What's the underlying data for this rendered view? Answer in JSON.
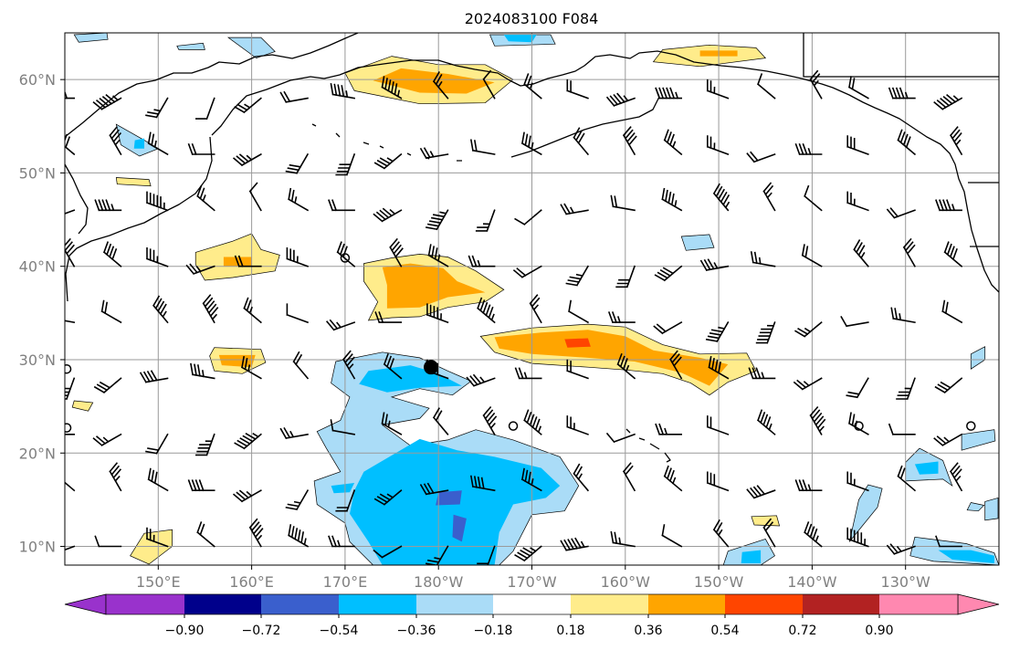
{
  "title": "2024083100 F084",
  "map": {
    "lon_range": [
      140,
      240
    ],
    "lat_range": [
      8,
      65
    ],
    "lon_ticks": [
      {
        "lon": 150,
        "label": "150°E"
      },
      {
        "lon": 160,
        "label": "160°E"
      },
      {
        "lon": 170,
        "label": "170°E"
      },
      {
        "lon": 180,
        "label": "180°W"
      },
      {
        "lon": 190,
        "label": "170°W"
      },
      {
        "lon": 200,
        "label": "160°W"
      },
      {
        "lon": 210,
        "label": "150°W"
      },
      {
        "lon": 220,
        "label": "140°W"
      },
      {
        "lon": 230,
        "label": "130°W"
      }
    ],
    "lat_ticks": [
      {
        "lat": 10,
        "label": "10°N"
      },
      {
        "lat": 20,
        "label": "20°N"
      },
      {
        "lat": 30,
        "label": "30°N"
      },
      {
        "lat": 40,
        "label": "40°N"
      },
      {
        "lat": 50,
        "label": "50°N"
      },
      {
        "lat": 60,
        "label": "60°N"
      }
    ],
    "gridlines": true,
    "marker": {
      "lon": 179.2,
      "lat": 29.2,
      "symbol": "filled-circle"
    }
  },
  "colorbar": {
    "levels": [
      "−0.90",
      "−0.72",
      "−0.54",
      "−0.36",
      "−0.18",
      "0.18",
      "0.36",
      "0.54",
      "0.72",
      "0.90"
    ],
    "colors": [
      "#9932cc",
      "#00008b",
      "#3a5fcd",
      "#00bfff",
      "#aadcf7",
      "#ffffff",
      "#ffec8b",
      "#ffa500",
      "#ff4500",
      "#b22222",
      "#ff88b0"
    ],
    "extend": "both"
  },
  "anomaly_regions": [
    {
      "sign": "pos",
      "level": 1,
      "points": [
        [
          175,
          62.5
        ],
        [
          180,
          61.6
        ],
        [
          185,
          61.6
        ],
        [
          188,
          60
        ],
        [
          185,
          57.5
        ],
        [
          178,
          57.4
        ],
        [
          171,
          58.8
        ],
        [
          170,
          60.7
        ]
      ]
    },
    {
      "sign": "pos",
      "level": 2,
      "points": [
        [
          176,
          61.2
        ],
        [
          181,
          60.6
        ],
        [
          186,
          59.7
        ],
        [
          183,
          58.5
        ],
        [
          178,
          58.6
        ],
        [
          173,
          59.9
        ]
      ]
    },
    {
      "sign": "pos",
      "level": 1,
      "points": [
        [
          204,
          63.2
        ],
        [
          209,
          63.7
        ],
        [
          214,
          63.4
        ],
        [
          215,
          62.3
        ],
        [
          208,
          61.4
        ],
        [
          203,
          61.9
        ]
      ]
    },
    {
      "sign": "pos",
      "level": 2,
      "points": [
        [
          208,
          63.1
        ],
        [
          212,
          63.1
        ],
        [
          212,
          62.5
        ],
        [
          208,
          62.5
        ]
      ]
    },
    {
      "sign": "pos",
      "level": 1,
      "points": [
        [
          154,
          41.5
        ],
        [
          158,
          42.7
        ],
        [
          160,
          43.5
        ],
        [
          161,
          41.8
        ],
        [
          163,
          41.2
        ],
        [
          162.5,
          39.5
        ],
        [
          158,
          38.8
        ],
        [
          155,
          38.5
        ],
        [
          154,
          40.2
        ]
      ]
    },
    {
      "sign": "pos",
      "level": 2,
      "points": [
        [
          157,
          41
        ],
        [
          160,
          41
        ],
        [
          160,
          40
        ],
        [
          157,
          40
        ]
      ]
    },
    {
      "sign": "pos",
      "level": 1,
      "points": [
        [
          172,
          40.3
        ],
        [
          175,
          40.9
        ],
        [
          178,
          41.3
        ],
        [
          181,
          41
        ],
        [
          184,
          39.5
        ],
        [
          187,
          37.5
        ],
        [
          185,
          36.2
        ],
        [
          181,
          35.6
        ],
        [
          178,
          34.6
        ],
        [
          175,
          34.5
        ],
        [
          172.5,
          34.2
        ],
        [
          173.5,
          36.2
        ],
        [
          172,
          38.4
        ]
      ]
    },
    {
      "sign": "pos",
      "level": 2,
      "points": [
        [
          174,
          39.9
        ],
        [
          177,
          40.3
        ],
        [
          180.5,
          39.8
        ],
        [
          182,
          38.4
        ],
        [
          185,
          37.2
        ],
        [
          181,
          36.7
        ],
        [
          178,
          35.6
        ],
        [
          174.5,
          35.5
        ],
        [
          174.5,
          38
        ]
      ]
    },
    {
      "sign": "pos",
      "level": 1,
      "points": [
        [
          184.5,
          32.5
        ],
        [
          190,
          33.4
        ],
        [
          196,
          33.8
        ],
        [
          200,
          33.5
        ],
        [
          204,
          31.6
        ],
        [
          208,
          30.6
        ],
        [
          213,
          30.7
        ],
        [
          214,
          28.8
        ],
        [
          211,
          27.6
        ],
        [
          209,
          26.2
        ],
        [
          207,
          27.5
        ],
        [
          204,
          28.5
        ],
        [
          200,
          28.9
        ],
        [
          196,
          29.2
        ],
        [
          190,
          29.6
        ],
        [
          186,
          30.8
        ]
      ]
    },
    {
      "sign": "pos",
      "level": 2,
      "points": [
        [
          186,
          32.4
        ],
        [
          191,
          32.9
        ],
        [
          196,
          33.2
        ],
        [
          200,
          32.5
        ],
        [
          203,
          31
        ],
        [
          208,
          30.2
        ],
        [
          211,
          29.5
        ],
        [
          209,
          27.2
        ],
        [
          206,
          28.6
        ],
        [
          201,
          29.8
        ],
        [
          196,
          30.2
        ],
        [
          190,
          30.6
        ],
        [
          186.5,
          31.2
        ]
      ]
    },
    {
      "sign": "pos",
      "level": 3,
      "points": [
        [
          193.5,
          32.2
        ],
        [
          196,
          32.3
        ],
        [
          196.3,
          31.4
        ],
        [
          193.8,
          31.3
        ]
      ]
    },
    {
      "sign": "pos",
      "level": 1,
      "points": [
        [
          156,
          31.3
        ],
        [
          161,
          31.1
        ],
        [
          161.5,
          29.7
        ],
        [
          159,
          28.5
        ],
        [
          156,
          28.8
        ],
        [
          155.5,
          30.4
        ]
      ]
    },
    {
      "sign": "pos",
      "level": 2,
      "points": [
        [
          156.5,
          30.5
        ],
        [
          160.4,
          30.5
        ],
        [
          160,
          29.2
        ],
        [
          156.8,
          29.4
        ]
      ]
    },
    {
      "sign": "pos",
      "level": 1,
      "points": [
        [
          148.5,
          11.4
        ],
        [
          151.5,
          11.8
        ],
        [
          151.5,
          10
        ],
        [
          149,
          8.1
        ],
        [
          147,
          9
        ]
      ]
    },
    {
      "sign": "pos",
      "level": 1,
      "points": [
        [
          141,
          25.6
        ],
        [
          143,
          25.4
        ],
        [
          142.5,
          24.5
        ],
        [
          140.8,
          24.9
        ]
      ]
    },
    {
      "sign": "pos",
      "level": 1,
      "points": [
        [
          145.5,
          49.5
        ],
        [
          149,
          49.3
        ],
        [
          149.2,
          48.6
        ],
        [
          145.6,
          48.8
        ]
      ]
    },
    {
      "sign": "pos",
      "level": 1,
      "points": [
        [
          213.5,
          13.2
        ],
        [
          216.2,
          13.3
        ],
        [
          216.5,
          12.2
        ],
        [
          213.8,
          12.3
        ]
      ]
    },
    {
      "sign": "neg",
      "level": 1,
      "points": [
        [
          169,
          29.8
        ],
        [
          174,
          30.8
        ],
        [
          178,
          30.2
        ],
        [
          181,
          28.8
        ],
        [
          183.5,
          27.7
        ],
        [
          181.5,
          26.2
        ],
        [
          178,
          26.9
        ],
        [
          175,
          26
        ],
        [
          179,
          24.8
        ],
        [
          178,
          23.7
        ],
        [
          174,
          23
        ],
        [
          177,
          20.8
        ],
        [
          181,
          21.4
        ],
        [
          184,
          22.5
        ],
        [
          188,
          21.4
        ],
        [
          193,
          19.6
        ],
        [
          195,
          16.5
        ],
        [
          193.5,
          13.8
        ],
        [
          190,
          13.4
        ],
        [
          188,
          9.5
        ],
        [
          186.5,
          8
        ],
        [
          173,
          8
        ],
        [
          170.5,
          10.5
        ],
        [
          170,
          12.5
        ],
        [
          167,
          14.5
        ],
        [
          166.7,
          17
        ],
        [
          169.5,
          18
        ],
        [
          168,
          20.5
        ],
        [
          167,
          22.3
        ],
        [
          169.5,
          23.5
        ],
        [
          170.5,
          26
        ],
        [
          168.5,
          27.5
        ]
      ]
    },
    {
      "sign": "neg",
      "level": 2,
      "points": [
        [
          172.5,
          28.8
        ],
        [
          177,
          29.4
        ],
        [
          180,
          28.5
        ],
        [
          182.5,
          27.2
        ],
        [
          178,
          27
        ],
        [
          174.5,
          26.5
        ],
        [
          171.5,
          27.4
        ]
      ]
    },
    {
      "sign": "neg",
      "level": 2,
      "points": [
        [
          172,
          18
        ],
        [
          178,
          21.5
        ],
        [
          182,
          20.3
        ],
        [
          186,
          19.6
        ],
        [
          191,
          18.4
        ],
        [
          193,
          16.5
        ],
        [
          191.5,
          15.2
        ],
        [
          188,
          14.5
        ],
        [
          186.5,
          11.5
        ],
        [
          186,
          8
        ],
        [
          174,
          8
        ],
        [
          172.5,
          10.5
        ],
        [
          170.5,
          13.5
        ],
        [
          171,
          16
        ]
      ]
    },
    {
      "sign": "neg",
      "level": 2,
      "points": [
        [
          168.5,
          16.5
        ],
        [
          171,
          16.8
        ],
        [
          170.5,
          15.8
        ],
        [
          168.8,
          15.7
        ]
      ]
    },
    {
      "sign": "neg",
      "level": 3,
      "points": [
        [
          180,
          15.8
        ],
        [
          182.5,
          16
        ],
        [
          182.3,
          14.5
        ],
        [
          179.7,
          14.4
        ]
      ]
    },
    {
      "sign": "neg",
      "level": 3,
      "points": [
        [
          181.6,
          13.4
        ],
        [
          183,
          13
        ],
        [
          182.5,
          10.5
        ],
        [
          181.5,
          11
        ]
      ]
    },
    {
      "sign": "neg",
      "level": 1,
      "points": [
        [
          185.5,
          64.8
        ],
        [
          192,
          64.8
        ],
        [
          192.5,
          63.8
        ],
        [
          186,
          63.6
        ]
      ]
    },
    {
      "sign": "neg",
      "level": 2,
      "points": [
        [
          187,
          64.8
        ],
        [
          190.5,
          64.8
        ],
        [
          190,
          64
        ],
        [
          187.5,
          64.1
        ]
      ]
    },
    {
      "sign": "neg",
      "level": 1,
      "points": [
        [
          141,
          64.8
        ],
        [
          144.5,
          65
        ],
        [
          144.6,
          64.3
        ],
        [
          141.5,
          64
        ]
      ]
    },
    {
      "sign": "neg",
      "level": 1,
      "points": [
        [
          157.5,
          64.5
        ],
        [
          161,
          64.5
        ],
        [
          162.5,
          63
        ],
        [
          160.5,
          62.3
        ]
      ]
    },
    {
      "sign": "neg",
      "level": 1,
      "points": [
        [
          152,
          63.6
        ],
        [
          154.8,
          63.9
        ],
        [
          155,
          63.2
        ],
        [
          152.2,
          63.2
        ]
      ]
    },
    {
      "sign": "neg",
      "level": 1,
      "points": [
        [
          145.5,
          55.2
        ],
        [
          148.5,
          53.5
        ],
        [
          150,
          52.6
        ],
        [
          148,
          51.8
        ],
        [
          146,
          53
        ]
      ]
    },
    {
      "sign": "neg",
      "level": 2,
      "points": [
        [
          147.5,
          53.5
        ],
        [
          148.5,
          53.7
        ],
        [
          148.5,
          52.6
        ],
        [
          147.4,
          52.6
        ]
      ]
    },
    {
      "sign": "neg",
      "level": 1,
      "points": [
        [
          206,
          43.2
        ],
        [
          209,
          43.4
        ],
        [
          209.5,
          42
        ],
        [
          206.5,
          41.7
        ]
      ]
    },
    {
      "sign": "neg",
      "level": 1,
      "points": [
        [
          237,
          30.6
        ],
        [
          238.5,
          31.4
        ],
        [
          238.5,
          30
        ],
        [
          237,
          29
        ]
      ]
    },
    {
      "sign": "neg",
      "level": 1,
      "points": [
        [
          236,
          22
        ],
        [
          239.5,
          22.5
        ],
        [
          239.6,
          21.3
        ],
        [
          236,
          20.3
        ]
      ]
    },
    {
      "sign": "neg",
      "level": 1,
      "points": [
        [
          230,
          17
        ],
        [
          234,
          17.2
        ],
        [
          235,
          16.5
        ],
        [
          234,
          19.2
        ],
        [
          231.5,
          20.5
        ],
        [
          230,
          19
        ]
      ]
    },
    {
      "sign": "neg",
      "level": 2,
      "points": [
        [
          231,
          18.8
        ],
        [
          233.5,
          19.1
        ],
        [
          233.5,
          17.8
        ],
        [
          231.5,
          17.7
        ]
      ]
    },
    {
      "sign": "neg",
      "level": 1,
      "points": [
        [
          224,
          10.5
        ],
        [
          227,
          14.2
        ],
        [
          227.5,
          16.2
        ],
        [
          226,
          16.6
        ],
        [
          225,
          15
        ]
      ]
    },
    {
      "sign": "neg",
      "level": 1,
      "points": [
        [
          231,
          11
        ],
        [
          236.5,
          10.3
        ],
        [
          239.5,
          9.3
        ],
        [
          240,
          8
        ],
        [
          233,
          8.4
        ],
        [
          230.5,
          9
        ]
      ]
    },
    {
      "sign": "neg",
      "level": 2,
      "points": [
        [
          233.5,
          9.6
        ],
        [
          237,
          9.6
        ],
        [
          239.5,
          9
        ],
        [
          239.5,
          8.2
        ],
        [
          235,
          8.6
        ]
      ]
    },
    {
      "sign": "neg",
      "level": 1,
      "points": [
        [
          238.5,
          14.8
        ],
        [
          239.9,
          15.2
        ],
        [
          239.9,
          13
        ],
        [
          238.5,
          12.8
        ]
      ]
    },
    {
      "sign": "neg",
      "level": 1,
      "points": [
        [
          237,
          14.7
        ],
        [
          238.4,
          14.4
        ],
        [
          237.8,
          13.8
        ],
        [
          236.6,
          13.9
        ]
      ]
    },
    {
      "sign": "neg",
      "level": 1,
      "points": [
        [
          211,
          9.5
        ],
        [
          215,
          10.8
        ],
        [
          216,
          9
        ],
        [
          214.5,
          8
        ],
        [
          210.5,
          8
        ]
      ]
    },
    {
      "sign": "neg",
      "level": 2,
      "points": [
        [
          212.5,
          9.4
        ],
        [
          214.5,
          9.6
        ],
        [
          214.5,
          8.2
        ],
        [
          212.4,
          8.2
        ]
      ]
    }
  ],
  "wind_barbs": {
    "lons": [
      141,
      146,
      151,
      156,
      161,
      166,
      171,
      176,
      181,
      186,
      191,
      196,
      201,
      206,
      211,
      216,
      221,
      226,
      231,
      236
    ],
    "lats": [
      10,
      16,
      22,
      28,
      34,
      40,
      46,
      52,
      58
    ],
    "directions_deg": [
      250,
      270,
      290,
      310,
      330,
      300,
      270,
      240,
      210,
      200,
      230,
      260,
      280,
      300,
      320,
      330,
      310,
      290
    ],
    "speed_pattern_kt": [
      15,
      20,
      10,
      25,
      15,
      30,
      20,
      40,
      35,
      25,
      45,
      15
    ]
  },
  "station_circles": [
    {
      "lon": 170.0,
      "lat": 40.9
    },
    {
      "lon": 140.2,
      "lat": 29.0
    },
    {
      "lon": 140.2,
      "lat": 22.7
    },
    {
      "lon": 188.0,
      "lat": 22.9
    },
    {
      "lon": 225.0,
      "lat": 22.9
    },
    {
      "lon": 237.0,
      "lat": 22.9
    }
  ]
}
